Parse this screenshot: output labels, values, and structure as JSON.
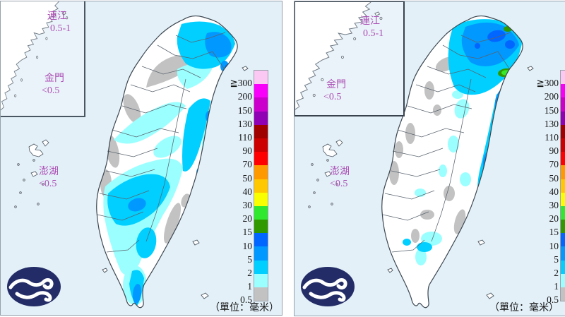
{
  "panels": [
    {
      "name": "left-map",
      "inset": {
        "lienchiang_label": "連江",
        "lienchiang_value": "0.5-1",
        "kinmen_label": "金門",
        "kinmen_value": "<0.5"
      },
      "penghu_label": "澎湖",
      "penghu_value": "<0.5",
      "unit_label": "（單位：毫米）"
    },
    {
      "name": "right-map",
      "inset": {
        "lienchiang_label": "連江",
        "lienchiang_value": "0.5-1",
        "kinmen_label": "金門",
        "kinmen_value": "<0.5"
      },
      "penghu_label": "澎湖",
      "penghu_value": "<0.5",
      "unit_label": "（單位：毫米）"
    }
  ],
  "legend": {
    "gte_symbol": "≧",
    "entries": [
      {
        "label": "300",
        "color": "#FAC8F2"
      },
      {
        "label": "200",
        "color": "#F900FA"
      },
      {
        "label": "150",
        "color": "#CC00CC"
      },
      {
        "label": "130",
        "color": "#9000B4"
      },
      {
        "label": "110",
        "color": "#A00000"
      },
      {
        "label": "90",
        "color": "#CC0000"
      },
      {
        "label": "70",
        "color": "#FF0000"
      },
      {
        "label": "50",
        "color": "#FF9900"
      },
      {
        "label": "40",
        "color": "#FFC800"
      },
      {
        "label": "30",
        "color": "#FAFF00"
      },
      {
        "label": "20",
        "color": "#30E82E"
      },
      {
        "label": "15",
        "color": "#309900"
      },
      {
        "label": "10",
        "color": "#0165FF"
      },
      {
        "label": "5",
        "color": "#0198FF"
      },
      {
        "label": "2",
        "color": "#00CFFF"
      },
      {
        "label": "1",
        "color": "#9BFFFF"
      },
      {
        "label": "0.5",
        "color": "#C2C2C2"
      }
    ]
  },
  "colors": {
    "sea": "#E3F0F8",
    "region_label_purple": "#AC4FB5",
    "logo_navy": "#232C66"
  }
}
